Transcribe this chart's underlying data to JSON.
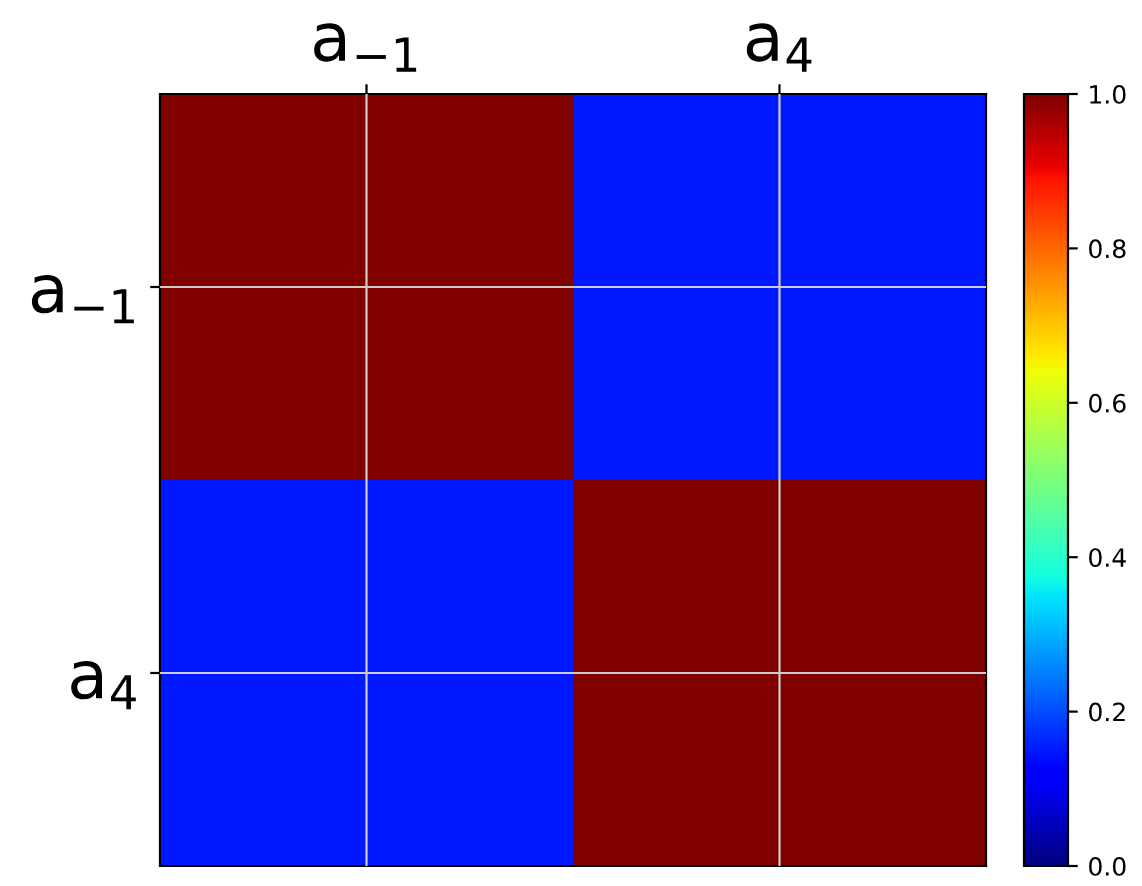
{
  "chart_data": {
    "type": "heatmap",
    "categories": [
      "a$_{−1}$",
      "a$_{4}$"
    ],
    "y_categories": [
      "a$_{−1}$",
      "a$_{4}$"
    ],
    "cells": [
      [
        1.0,
        0.15
      ],
      [
        0.15,
        1.0
      ]
    ],
    "clim": [
      0.0,
      1.0
    ],
    "cticks": [
      {
        "value": 0,
        "label": "0.0"
      },
      0.2,
      0.4,
      0.6,
      0.8,
      {
        "value": 1,
        "label": "1.0"
      }
    ],
    "grid": true
  }
}
